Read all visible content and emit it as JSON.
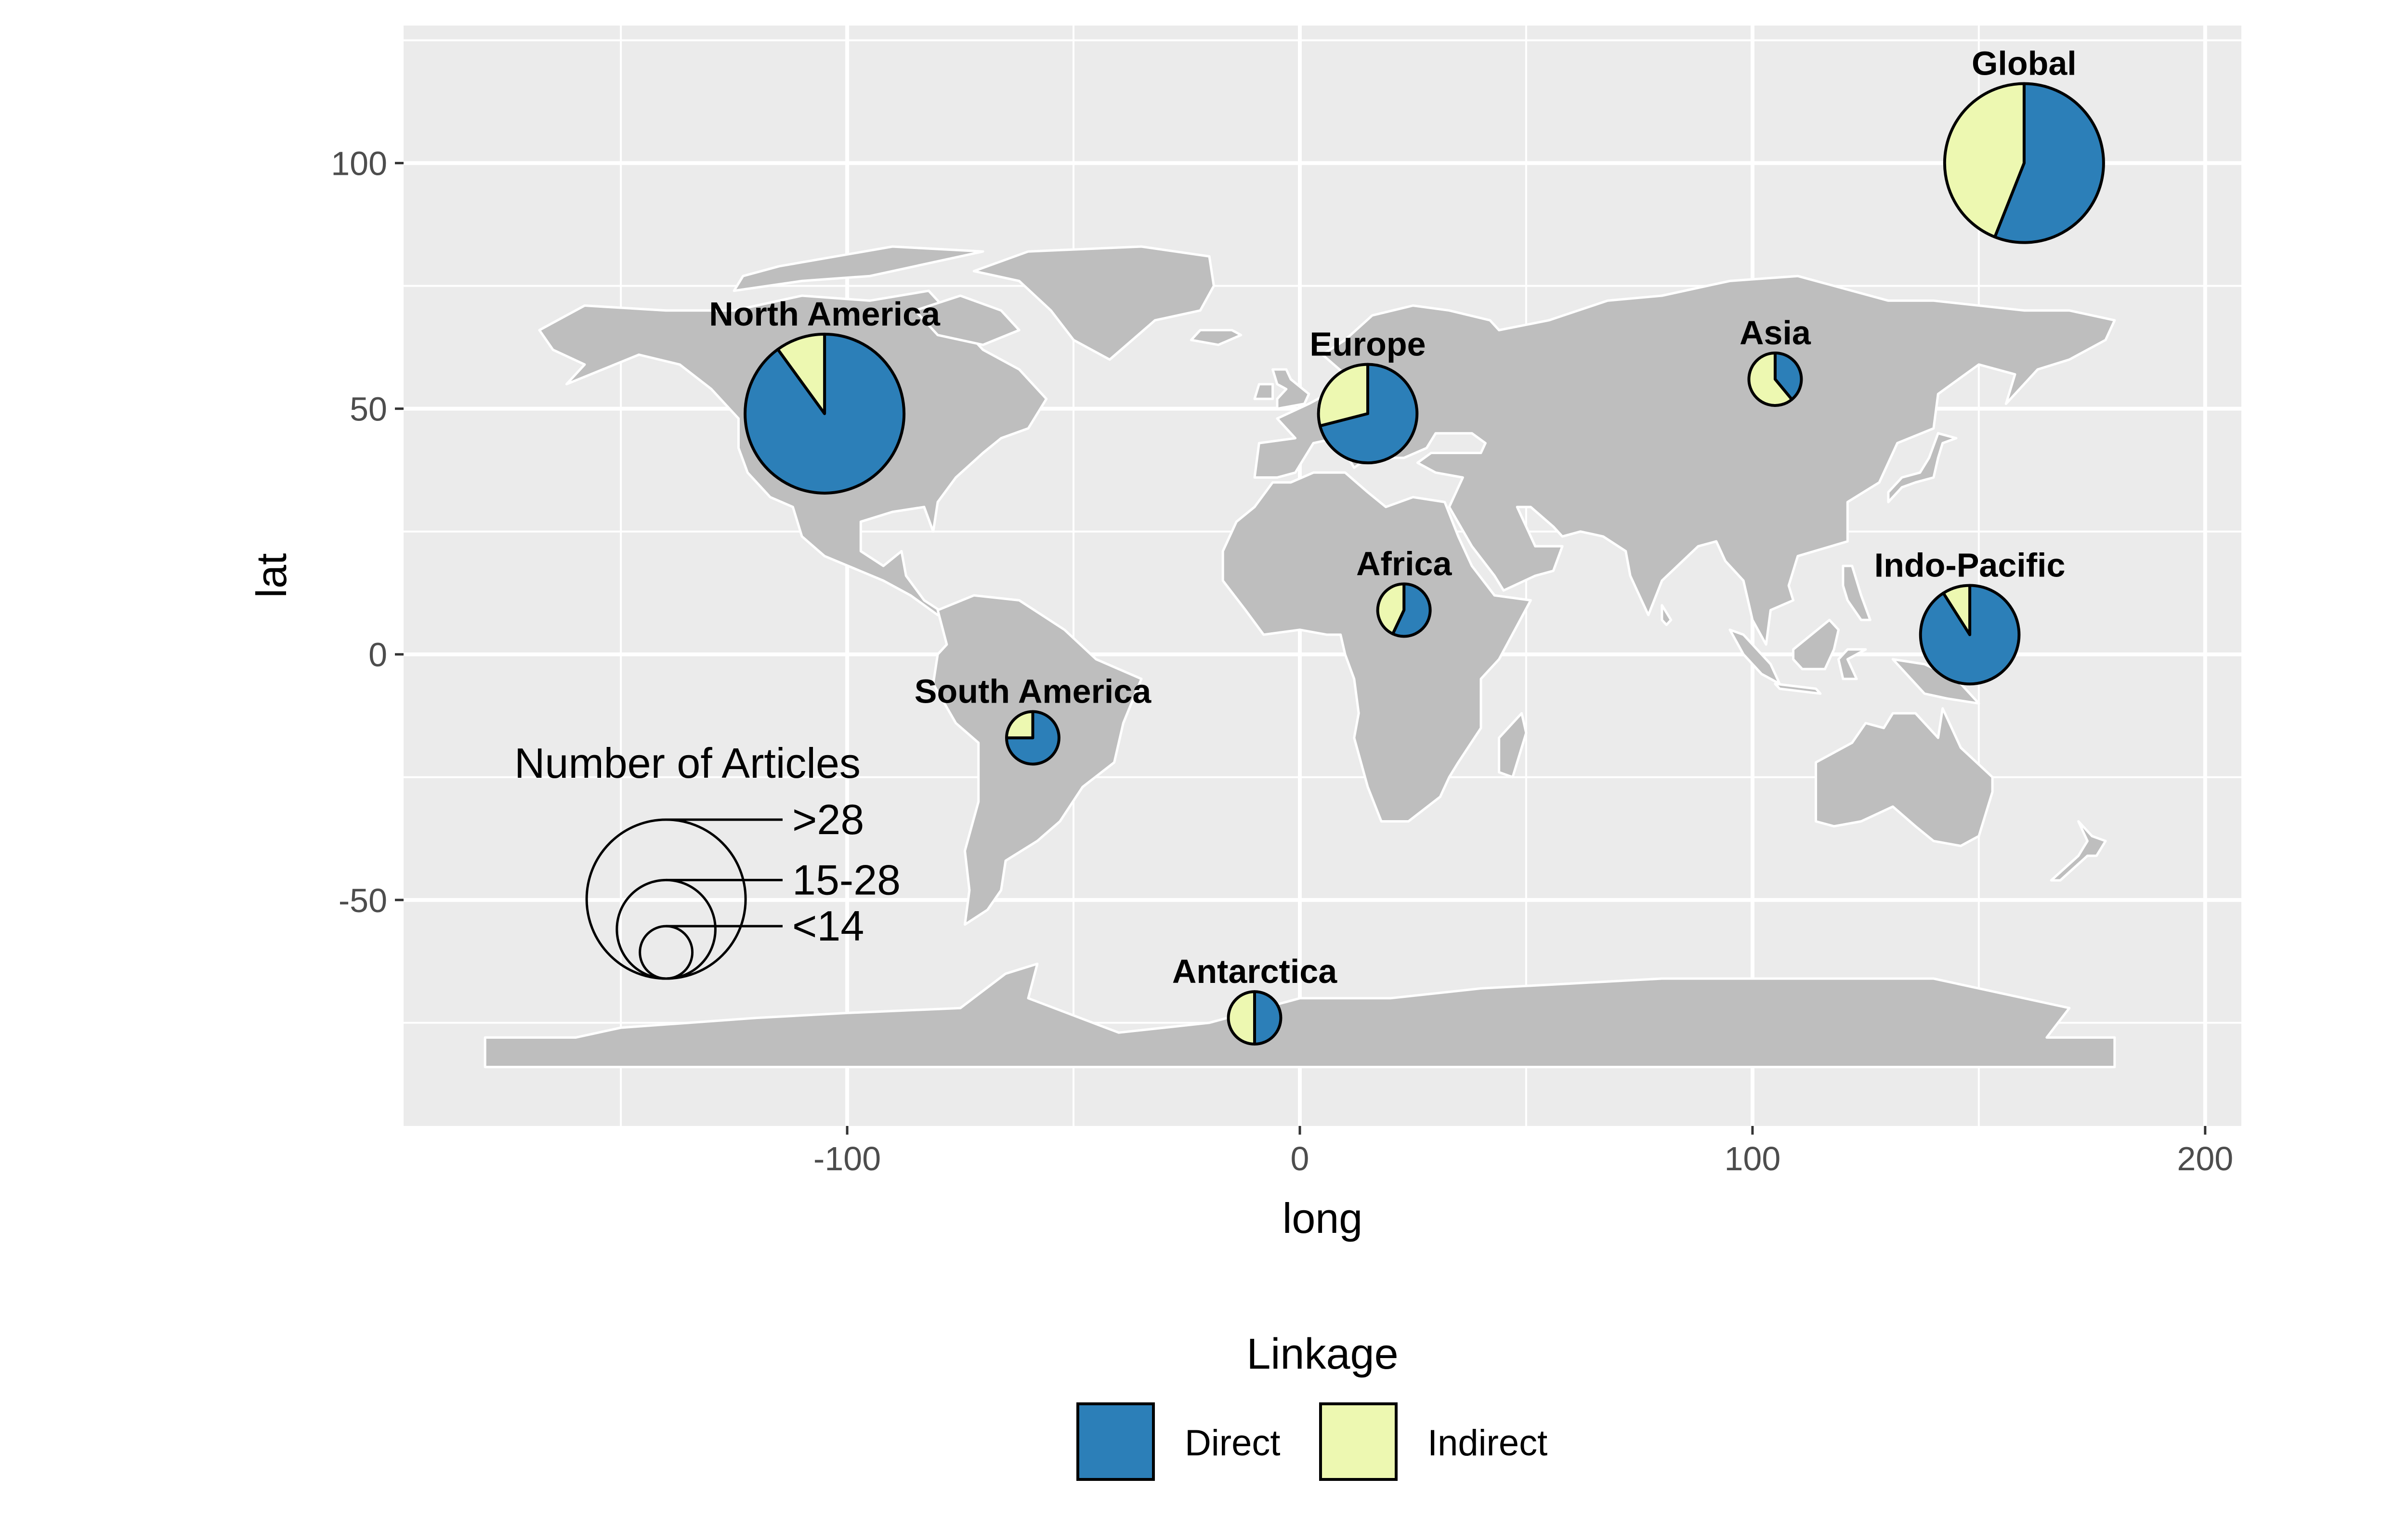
{
  "chart_data": {
    "type": "pie",
    "subtype": "pies-on-world-map",
    "xlabel": "long",
    "ylabel": "lat",
    "xlim": [
      -198,
      208
    ],
    "ylim": [
      -96,
      128
    ],
    "x_ticks": [
      -100,
      0,
      100,
      200
    ],
    "x_tick_labels": [
      "-100",
      "0",
      "100",
      "200"
    ],
    "y_ticks": [
      -50,
      0,
      50,
      100
    ],
    "y_tick_labels": [
      "-50",
      "0",
      "50",
      "100"
    ],
    "grid": true,
    "legend": {
      "title": "Linkage",
      "position": "bottom",
      "entries": [
        {
          "name": "Direct",
          "color": "#2c7fb8"
        },
        {
          "name": "Indirect",
          "color": "#edf8b1"
        }
      ]
    },
    "size_legend": {
      "title": "Number of Articles",
      "categories": [
        ">28",
        "15-28",
        "<14"
      ],
      "relative_radius": [
        1.0,
        0.62,
        0.33
      ]
    },
    "regions": [
      {
        "name": "Global",
        "long": 160,
        "lat": 100,
        "direct_share": 0.56,
        "size_class": ">28"
      },
      {
        "name": "North America",
        "long": -105,
        "lat": 49,
        "direct_share": 0.9,
        "size_class": ">28"
      },
      {
        "name": "Europe",
        "long": 15,
        "lat": 49,
        "direct_share": 0.71,
        "size_class": "15-28"
      },
      {
        "name": "Asia",
        "long": 105,
        "lat": 56,
        "direct_share": 0.39,
        "size_class": "<14"
      },
      {
        "name": "Africa",
        "long": 23,
        "lat": 9,
        "direct_share": 0.57,
        "size_class": "<14"
      },
      {
        "name": "Indo-Pacific",
        "long": 148,
        "lat": 4,
        "direct_share": 0.91,
        "size_class": "15-28"
      },
      {
        "name": "South America",
        "long": -59,
        "lat": -17,
        "direct_share": 0.75,
        "size_class": "<14"
      },
      {
        "name": "Antarctica",
        "long": -10,
        "lat": -74,
        "direct_share": 0.5,
        "size_class": "<14"
      }
    ],
    "colors": {
      "panel_background": "#ebebeb",
      "grid": "#ffffff",
      "land": "#bebebe",
      "border": "#ffffff"
    }
  }
}
